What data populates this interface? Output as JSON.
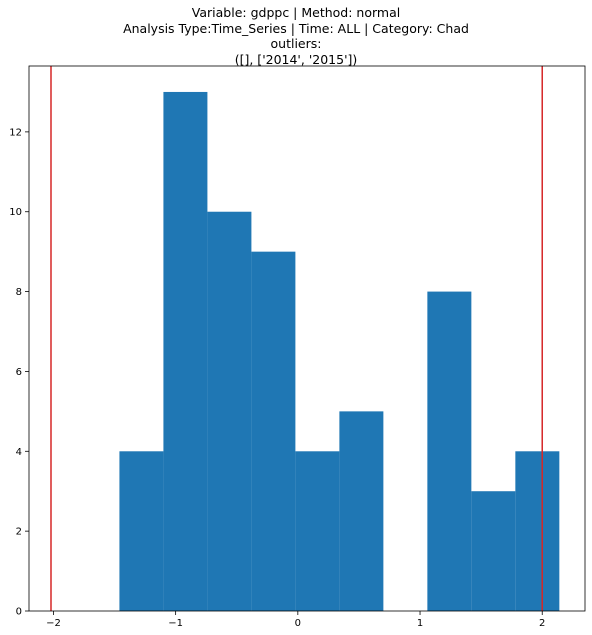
{
  "chart_data": {
    "type": "histogram",
    "title_lines": [
      "Variable: gdppc | Method: normal",
      "Analysis Type:Time_Series | Time: ALL | Category: Chad",
      "outliers:",
      "([], ['2014', '2015'])"
    ],
    "xlabel": "",
    "ylabel": "",
    "xlim": [
      -2.2,
      2.35
    ],
    "ylim": [
      0,
      13.65
    ],
    "xticks": [
      -2,
      -1,
      0,
      1,
      2
    ],
    "xtick_labels": [
      "−2",
      "−1",
      "0",
      "1",
      "2"
    ],
    "yticks": [
      0,
      2,
      4,
      6,
      8,
      10,
      12
    ],
    "bins": [
      {
        "x0": -1.46,
        "x1": -1.1,
        "count": 4
      },
      {
        "x0": -1.1,
        "x1": -0.74,
        "count": 13
      },
      {
        "x0": -0.74,
        "x1": -0.38,
        "count": 10
      },
      {
        "x0": -0.38,
        "x1": -0.02,
        "count": 9
      },
      {
        "x0": -0.02,
        "x1": 0.34,
        "count": 4
      },
      {
        "x0": 0.34,
        "x1": 0.7,
        "count": 5
      },
      {
        "x0": 0.7,
        "x1": 1.06,
        "count": 0
      },
      {
        "x0": 1.06,
        "x1": 1.42,
        "count": 8
      },
      {
        "x0": 1.42,
        "x1": 1.78,
        "count": 3
      },
      {
        "x0": 1.78,
        "x1": 2.14,
        "count": 4
      }
    ],
    "threshold_lines": [
      -2.02,
      2.0
    ],
    "bar_color": "#1f77b4",
    "line_color": "#d62728",
    "grid": false,
    "legend": "none"
  }
}
